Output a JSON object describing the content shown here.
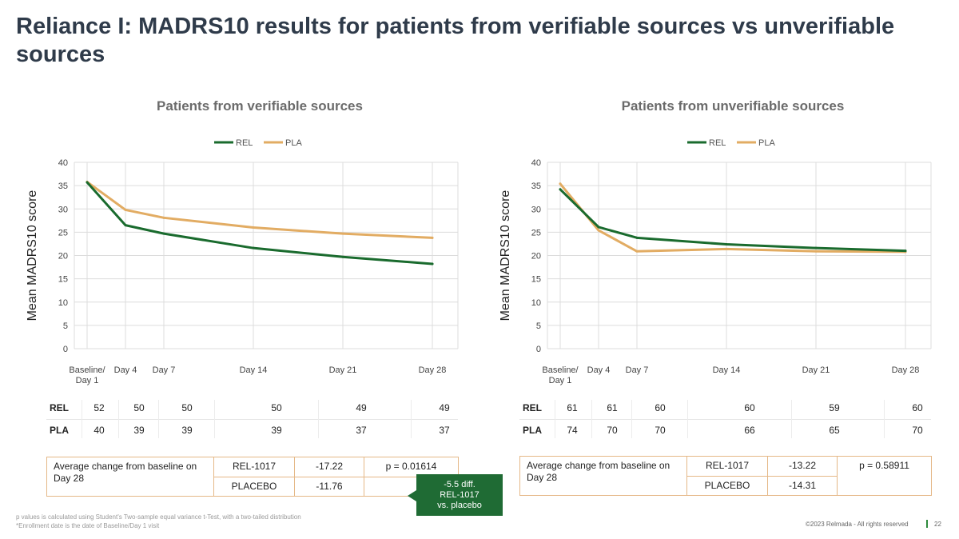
{
  "page_title": "Reliance I: MADRS10 results for patients from verifiable sources vs unverifiable sources",
  "colors": {
    "rel": "#1a6b2e",
    "pla": "#e2ac63",
    "callout": "#1f6b34",
    "box_border": "#e5b887"
  },
  "chart_data": [
    {
      "type": "line",
      "title": "Patients from verifiable sources",
      "ylabel": "Mean MADRS10 score",
      "xlabel": "",
      "ylim": [
        0,
        40
      ],
      "yticks": [
        "0",
        "5",
        "10",
        "15",
        "20",
        "25",
        "30",
        "35",
        "40"
      ],
      "x_labels": [
        [
          "Baseline/",
          "Day 1"
        ],
        [
          "Day 4"
        ],
        [
          "Day 7"
        ],
        [
          "Day 14"
        ],
        [
          "Day 21"
        ],
        [
          "Day 28"
        ]
      ],
      "x_days": [
        1,
        4,
        7,
        14,
        21,
        28
      ],
      "legend": [
        "REL",
        "PLA"
      ],
      "legend_position": "top",
      "series": [
        {
          "name": "REL",
          "values": [
            35.7,
            26.5,
            24.7,
            21.6,
            19.7,
            18.2
          ]
        },
        {
          "name": "PLA",
          "values": [
            35.8,
            29.8,
            28.1,
            26.0,
            24.7,
            23.8
          ]
        }
      ]
    },
    {
      "type": "line",
      "title": "Patients from unverifiable sources",
      "ylabel": "Mean MADRS10 score",
      "xlabel": "",
      "ylim": [
        0,
        40
      ],
      "yticks": [
        "0",
        "5",
        "10",
        "15",
        "20",
        "25",
        "30",
        "35",
        "40"
      ],
      "x_labels": [
        [
          "Baseline/",
          "Day 1"
        ],
        [
          "Day 4"
        ],
        [
          "Day 7"
        ],
        [
          "Day 14"
        ],
        [
          "Day 21"
        ],
        [
          "Day 28"
        ]
      ],
      "x_days": [
        1,
        4,
        7,
        14,
        21,
        28
      ],
      "legend": [
        "REL",
        "PLA"
      ],
      "legend_position": "top",
      "series": [
        {
          "name": "REL",
          "values": [
            34.2,
            26.1,
            23.8,
            22.4,
            21.6,
            21.0
          ]
        },
        {
          "name": "PLA",
          "values": [
            35.4,
            25.4,
            20.9,
            21.4,
            20.9,
            20.8
          ]
        }
      ]
    }
  ],
  "n_tables": [
    {
      "rows": [
        {
          "label": "REL",
          "values": [
            "52",
            "50",
            "50",
            "50",
            "49",
            "49"
          ]
        },
        {
          "label": "PLA",
          "values": [
            "40",
            "39",
            "39",
            "39",
            "37",
            "37"
          ]
        }
      ]
    },
    {
      "rows": [
        {
          "label": "REL",
          "values": [
            "61",
            "61",
            "60",
            "60",
            "59",
            "60"
          ]
        },
        {
          "label": "PLA",
          "values": [
            "74",
            "70",
            "70",
            "66",
            "65",
            "70"
          ]
        }
      ]
    }
  ],
  "summary": [
    {
      "label": "Average change from baseline on Day 28",
      "rel_name": "REL-1017",
      "rel_value": "-17.22",
      "pla_name": "PLACEBO",
      "pla_value": "-11.76",
      "p_value": "p = 0.01614"
    },
    {
      "label": "Average change from baseline on Day 28",
      "rel_name": "REL-1017",
      "rel_value": "-13.22",
      "pla_name": "PLACEBO",
      "pla_value": "-14.31",
      "p_value": "p = 0.58911"
    }
  ],
  "callout": {
    "line1": "-5.5 diff.",
    "line2": "REL-1017",
    "line3": "vs. placebo"
  },
  "footnotes": {
    "line1": "p values is calculated using Student's Two-sample equal variance t-Test, with a two-tailed distribution",
    "line2": "*Enrollment date is the date of Baseline/Day 1 visit"
  },
  "copyright": "©2023 Relmada - All rights reserved",
  "page_number": "22"
}
